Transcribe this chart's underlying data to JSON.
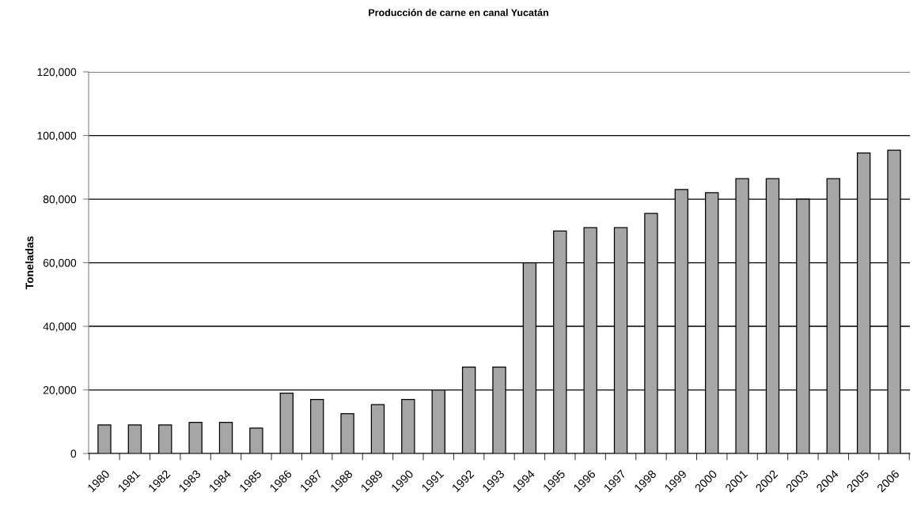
{
  "chart_data": {
    "type": "bar",
    "title": "Producción de carne en canal Yucatán",
    "ylabel": "Toneladas",
    "categories": [
      "1980",
      "1981",
      "1982",
      "1983",
      "1984",
      "1985",
      "1986",
      "1987",
      "1988",
      "1989",
      "1990",
      "1991",
      "1992",
      "1993",
      "1994",
      "1995",
      "1996",
      "1997",
      "1998",
      "1999",
      "2000",
      "2001",
      "2002",
      "2003",
      "2004",
      "2005",
      "2006"
    ],
    "values": [
      9000,
      9000,
      9000,
      9800,
      9800,
      8000,
      19000,
      17000,
      12500,
      15400,
      17000,
      20000,
      27200,
      27200,
      60000,
      70000,
      71000,
      71000,
      75500,
      83000,
      82000,
      86400,
      86400,
      80000,
      86400,
      94500,
      95400
    ],
    "color": "#a6a6a6",
    "ylim": [
      0,
      120000
    ],
    "yticks": [
      0,
      {
        "value": 20000,
        "label": "20,000"
      },
      {
        "value": 40000,
        "label": "40,000"
      },
      {
        "value": 60000,
        "label": "60,000"
      },
      {
        "value": 80000,
        "label": "80,000"
      },
      {
        "value": 100000,
        "label": "100,000"
      },
      {
        "value": 120000,
        "label": "120,000"
      }
    ],
    "grid": "y"
  }
}
